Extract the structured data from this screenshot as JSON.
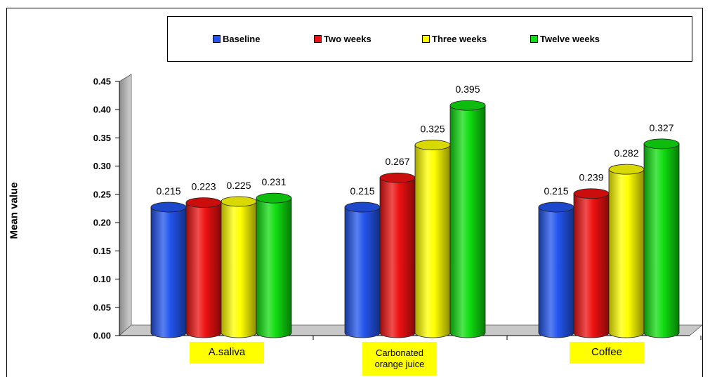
{
  "chart_data": {
    "type": "bar",
    "categories": [
      "A.saliva",
      "Carbonated orange juice",
      "Coffee"
    ],
    "category_lines": [
      [
        "A.saliva"
      ],
      [
        "Carbonated",
        "orange juice"
      ],
      [
        "Coffee"
      ]
    ],
    "series": [
      {
        "name": "Baseline",
        "color": "#2255ee",
        "values": [
          0.215,
          0.215,
          0.215
        ]
      },
      {
        "name": "Two weeks",
        "color": "#ee1111",
        "values": [
          0.223,
          0.267,
          0.239
        ]
      },
      {
        "name": "Three weeks",
        "color": "#ffff00",
        "values": [
          0.225,
          0.325,
          0.282
        ]
      },
      {
        "name": "Twelve weeks",
        "color": "#11dd11",
        "values": [
          0.231,
          0.395,
          0.327
        ]
      }
    ],
    "data_labels": [
      [
        "0.215",
        "0.223",
        "0.225",
        "0.231"
      ],
      [
        "0.215",
        "0.267",
        "0.325",
        "0.395"
      ],
      [
        "0.215",
        "0.239",
        "0.282",
        "0.327"
      ]
    ],
    "yticks": [
      "0.00",
      "0.05",
      "0.10",
      "0.15",
      "0.20",
      "0.25",
      "0.30",
      "0.35",
      "0.40",
      "0.45"
    ],
    "ylim": [
      0,
      0.45
    ],
    "ylabel": "Mean value",
    "xlabel": "",
    "title": "",
    "legend_position": "top",
    "category_label_background": "#ffff00",
    "bar_style": "3d-cylinder"
  }
}
